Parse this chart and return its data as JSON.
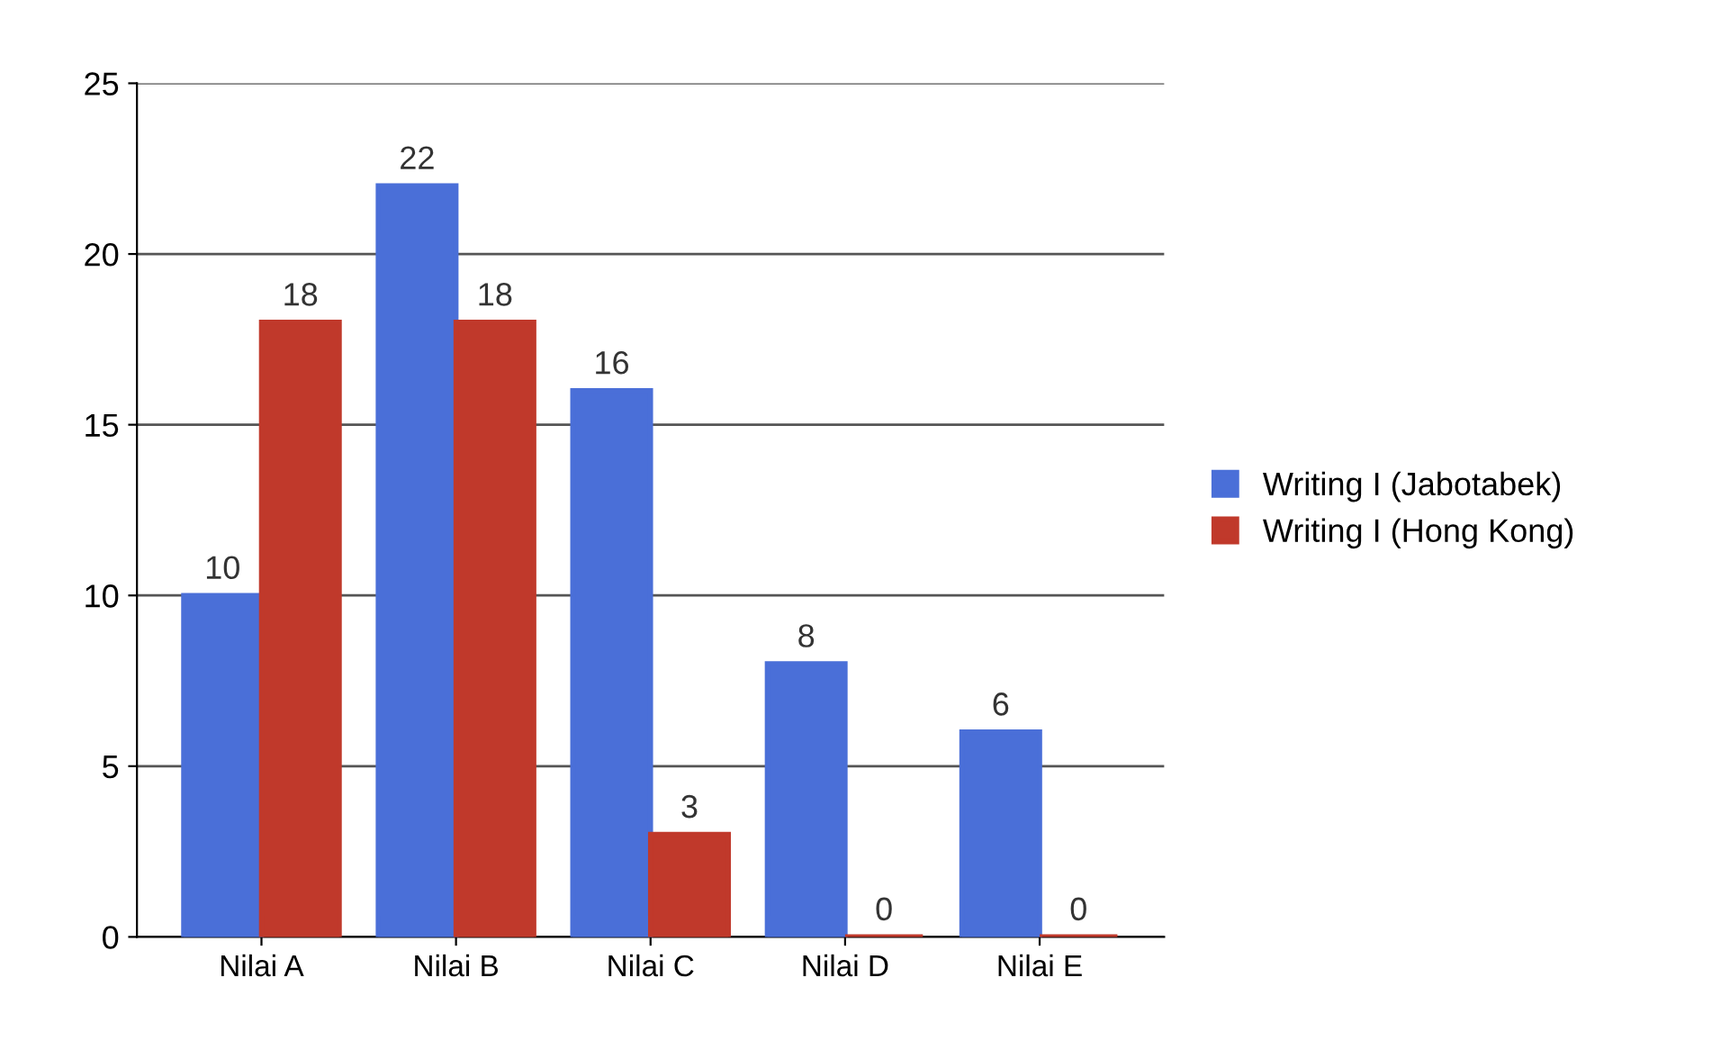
{
  "chart_data": {
    "type": "bar",
    "categories": [
      "Nilai A",
      "Nilai B",
      "Nilai C",
      "Nilai D",
      "Nilai E"
    ],
    "series": [
      {
        "name": "Writing I (Jabotabek)",
        "color": "#4a6fd8",
        "values": [
          10,
          22,
          16,
          8,
          6
        ]
      },
      {
        "name": "Writing I (Hong Kong)",
        "color": "#c0392b",
        "values": [
          18,
          18,
          3,
          0,
          0
        ]
      }
    ],
    "ylim": [
      0,
      25
    ],
    "yticks": [
      0,
      5,
      10,
      15,
      20,
      25
    ],
    "grid": "y",
    "legend": "right",
    "data_labels": true
  }
}
